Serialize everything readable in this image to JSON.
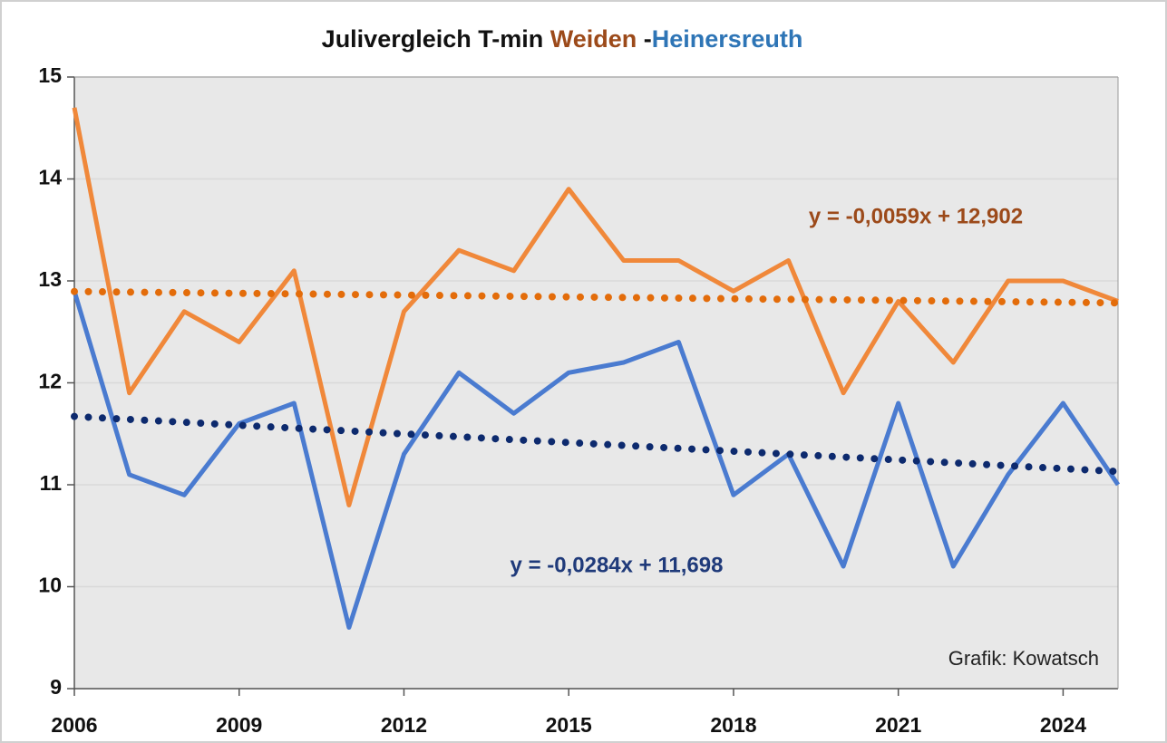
{
  "chart_data": {
    "type": "line",
    "title_parts": [
      {
        "text": "Julivergleich T-min ",
        "color": "#111111"
      },
      {
        "text": "Weiden",
        "color": "#9c4a1a"
      },
      {
        "text": " -",
        "color": "#111111"
      },
      {
        "text": "Heinersreuth",
        "color": "#2e75b6"
      }
    ],
    "x": [
      2006,
      2007,
      2008,
      2009,
      2010,
      2011,
      2012,
      2013,
      2014,
      2015,
      2016,
      2017,
      2018,
      2019,
      2020,
      2021,
      2022,
      2023,
      2024,
      2025
    ],
    "series": [
      {
        "name": "Weiden",
        "color": "#f0883a",
        "style": "solid",
        "values": [
          14.7,
          11.9,
          12.7,
          12.4,
          13.1,
          10.8,
          12.7,
          13.3,
          13.1,
          13.9,
          13.2,
          13.2,
          12.9,
          13.2,
          11.9,
          12.8,
          12.2,
          13.0,
          13.0,
          12.8
        ]
      },
      {
        "name": "Heinersreuth",
        "color": "#4a7bd0",
        "style": "solid",
        "values": [
          12.9,
          11.1,
          10.9,
          11.6,
          11.8,
          9.6,
          11.3,
          12.1,
          11.7,
          12.1,
          12.2,
          12.4,
          10.9,
          11.3,
          10.2,
          11.8,
          10.2,
          11.1,
          11.8,
          11.0
        ]
      },
      {
        "color": "#e36c0a",
        "style": "dotted",
        "values": [
          12.896,
          12.89,
          12.884,
          12.878,
          12.873,
          12.867,
          12.861,
          12.855,
          12.849,
          12.843,
          12.837,
          12.831,
          12.825,
          12.819,
          12.814,
          12.808,
          12.802,
          12.796,
          12.79,
          12.784
        ]
      },
      {
        "color": "#0d2a6e",
        "style": "dotted",
        "values": [
          11.67,
          11.641,
          11.613,
          11.584,
          11.556,
          11.528,
          11.499,
          11.471,
          11.442,
          11.414,
          11.386,
          11.357,
          11.329,
          11.3,
          11.272,
          11.244,
          11.215,
          11.187,
          11.158,
          11.13
        ]
      }
    ],
    "annotations": [
      {
        "text": "y = -0,0059x + 12,902",
        "color": "#9c4a1a"
      },
      {
        "text": "y = -0,0284x + 11,698",
        "color": "#1f3a7a"
      },
      {
        "text": "Grafik: Kowatsch",
        "color": "#222222"
      }
    ],
    "xlim": [
      2006,
      2025
    ],
    "xticks": [
      2006,
      2009,
      2012,
      2015,
      2018,
      2021,
      2024
    ],
    "ylim": [
      9,
      15
    ],
    "yticks": [
      9,
      10,
      11,
      12,
      13,
      14,
      15
    ],
    "grid": true
  }
}
